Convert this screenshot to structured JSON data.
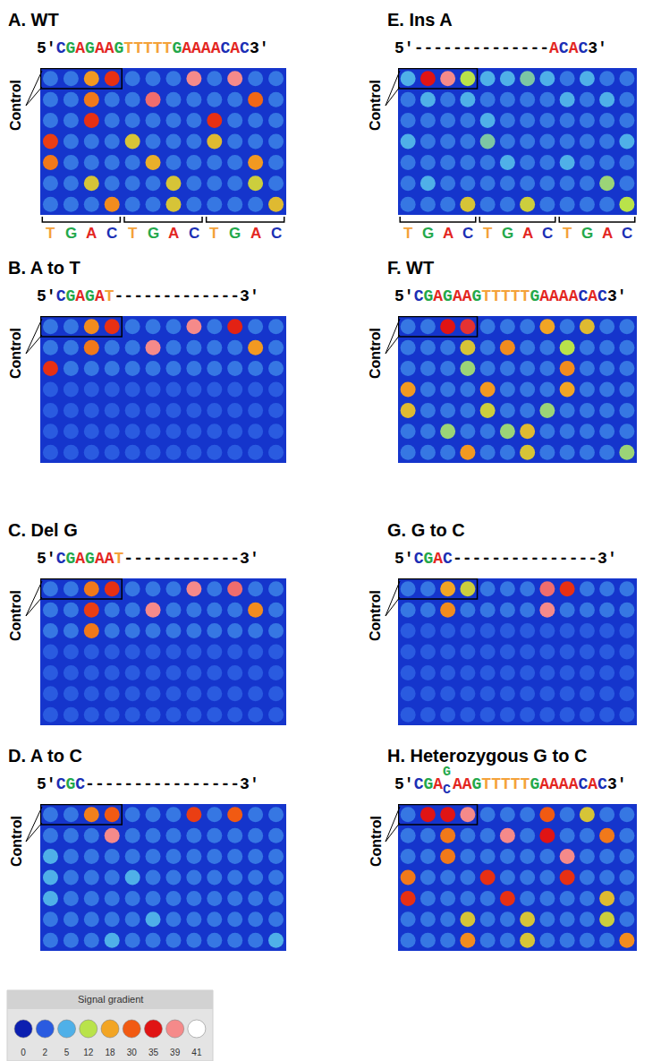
{
  "chart_data": [
    {
      "type": "heatmap",
      "title": "A. WT",
      "sequence": [
        "5'CGAGAAGTTTTTGAAAACAC3'"
      ],
      "row_label": "Control",
      "tick_labels": false,
      "column_labels": [
        "T",
        "G",
        "A",
        "C",
        "T",
        "G",
        "A",
        "C",
        "T",
        "G",
        "A",
        "C"
      ],
      "cells": [
        [
          3,
          3,
          20,
          33,
          3,
          3,
          3,
          39,
          3,
          39,
          3,
          3
        ],
        [
          3,
          3,
          25,
          3,
          3,
          38,
          3,
          3,
          3,
          3,
          28,
          3
        ],
        [
          3,
          3,
          33,
          3,
          3,
          3,
          3,
          3,
          33,
          3,
          3,
          3
        ],
        [
          32,
          3,
          3,
          3,
          15,
          3,
          3,
          3,
          16,
          3,
          3,
          3
        ],
        [
          25,
          3,
          3,
          3,
          3,
          17,
          3,
          3,
          3,
          3,
          20,
          3
        ],
        [
          3,
          3,
          15,
          3,
          3,
          3,
          15,
          3,
          3,
          3,
          14,
          3
        ],
        [
          3,
          3,
          3,
          22,
          3,
          3,
          15,
          3,
          3,
          3,
          3,
          16
        ]
      ]
    },
    {
      "type": "heatmap",
      "title": "B. A to T",
      "sequence": [
        "5'CGAGAT-------------3'"
      ],
      "row_label": "Control",
      "tick_labels": false,
      "cells": [
        [
          3,
          3,
          22,
          33,
          3,
          3,
          3,
          39,
          3,
          34,
          3,
          3
        ],
        [
          3,
          3,
          25,
          3,
          3,
          39,
          3,
          3,
          3,
          3,
          20,
          3
        ],
        [
          33,
          3,
          3,
          3,
          3,
          3,
          3,
          3,
          3,
          3,
          3,
          3
        ],
        [
          2,
          2,
          2,
          2,
          2,
          2,
          2,
          2,
          2,
          2,
          2,
          2
        ],
        [
          2,
          2,
          2,
          2,
          2,
          2,
          2,
          2,
          2,
          2,
          2,
          2
        ],
        [
          2,
          2,
          2,
          2,
          2,
          2,
          2,
          2,
          2,
          2,
          2,
          2
        ],
        [
          2,
          2,
          2,
          2,
          2,
          2,
          2,
          2,
          2,
          2,
          2,
          2
        ]
      ]
    },
    {
      "type": "heatmap",
      "title": "C. Del G",
      "sequence": [
        "5'CGAGAAT------------3'"
      ],
      "row_label": "Control",
      "tick_labels": false,
      "cells": [
        [
          3,
          3,
          25,
          33,
          3,
          3,
          3,
          39,
          3,
          38,
          3,
          3
        ],
        [
          3,
          3,
          32,
          3,
          3,
          39,
          3,
          3,
          3,
          3,
          22,
          3
        ],
        [
          3,
          3,
          25,
          3,
          3,
          3,
          3,
          3,
          3,
          3,
          3,
          3
        ],
        [
          2,
          2,
          2,
          2,
          2,
          2,
          2,
          2,
          2,
          2,
          2,
          2
        ],
        [
          2,
          2,
          2,
          2,
          2,
          2,
          2,
          2,
          2,
          2,
          2,
          2
        ],
        [
          2,
          2,
          2,
          2,
          2,
          2,
          2,
          2,
          2,
          2,
          2,
          2
        ],
        [
          2,
          2,
          2,
          2,
          2,
          2,
          2,
          2,
          2,
          2,
          2,
          2
        ]
      ]
    },
    {
      "type": "heatmap",
      "title": "D. A to C",
      "sequence": [
        "5'CGC----------------3'"
      ],
      "row_label": "Control",
      "tick_labels": false,
      "cells": [
        [
          3,
          3,
          24,
          30,
          3,
          3,
          3,
          32,
          3,
          30,
          3,
          3
        ],
        [
          3,
          3,
          3,
          39,
          3,
          3,
          3,
          3,
          3,
          3,
          3,
          3
        ],
        [
          5,
          3,
          3,
          3,
          3,
          3,
          3,
          3,
          3,
          3,
          3,
          3
        ],
        [
          5,
          3,
          3,
          3,
          5,
          3,
          3,
          3,
          3,
          3,
          3,
          3
        ],
        [
          5,
          3,
          3,
          3,
          3,
          3,
          3,
          3,
          3,
          3,
          3,
          3
        ],
        [
          3,
          3,
          3,
          3,
          3,
          5,
          3,
          3,
          3,
          3,
          3,
          3
        ],
        [
          3,
          3,
          3,
          5,
          3,
          3,
          3,
          3,
          3,
          3,
          3,
          5
        ]
      ]
    },
    {
      "type": "heatmap",
      "title": "E. Ins A",
      "sequence": [
        "5'--------------ACAC3'"
      ],
      "row_label": "Control",
      "tick_labels": false,
      "column_labels": [
        "T",
        "G",
        "A",
        "C",
        "T",
        "G",
        "A",
        "C",
        "T",
        "G",
        "A",
        "C"
      ],
      "cells": [
        [
          5,
          35,
          39,
          12,
          5,
          5,
          8,
          5,
          3,
          5,
          3,
          3
        ],
        [
          3,
          5,
          3,
          5,
          3,
          3,
          3,
          3,
          5,
          3,
          5,
          3
        ],
        [
          3,
          3,
          3,
          3,
          5,
          3,
          3,
          3,
          3,
          3,
          3,
          3
        ],
        [
          5,
          3,
          3,
          3,
          8,
          3,
          3,
          3,
          3,
          3,
          3,
          5
        ],
        [
          3,
          3,
          3,
          3,
          3,
          5,
          3,
          3,
          5,
          3,
          3,
          3
        ],
        [
          3,
          5,
          3,
          3,
          3,
          3,
          3,
          3,
          3,
          3,
          10,
          3
        ],
        [
          3,
          3,
          3,
          15,
          3,
          3,
          14,
          3,
          3,
          3,
          3,
          12
        ]
      ]
    },
    {
      "type": "heatmap",
      "title": "F. WT",
      "sequence": [
        "5'CGAGAAGTTTTTGAAAACAC3'"
      ],
      "row_label": "Control",
      "tick_labels": false,
      "cells": [
        [
          3,
          3,
          35,
          36,
          3,
          3,
          3,
          18,
          3,
          16,
          3,
          3
        ],
        [
          3,
          3,
          3,
          15,
          3,
          22,
          3,
          3,
          12,
          3,
          3,
          3
        ],
        [
          3,
          3,
          3,
          10,
          3,
          3,
          3,
          3,
          22,
          3,
          3,
          3
        ],
        [
          20,
          3,
          3,
          3,
          20,
          3,
          3,
          3,
          18,
          3,
          3,
          3
        ],
        [
          16,
          3,
          3,
          3,
          14,
          3,
          3,
          10,
          3,
          3,
          3,
          3
        ],
        [
          3,
          3,
          10,
          3,
          3,
          10,
          16,
          3,
          3,
          3,
          3,
          3
        ],
        [
          3,
          3,
          3,
          20,
          3,
          3,
          15,
          3,
          3,
          3,
          3,
          10
        ]
      ]
    },
    {
      "type": "heatmap",
      "title": "G. G to C",
      "sequence": [
        "5'CGAC---------------3'"
      ],
      "row_label": "Control",
      "tick_labels": false,
      "cells": [
        [
          3,
          3,
          18,
          14,
          3,
          3,
          3,
          38,
          33,
          3,
          3,
          3
        ],
        [
          3,
          3,
          22,
          3,
          3,
          3,
          3,
          39,
          3,
          3,
          3,
          3
        ],
        [
          2,
          2,
          2,
          2,
          2,
          2,
          2,
          2,
          2,
          2,
          2,
          2
        ],
        [
          2,
          2,
          2,
          2,
          2,
          2,
          2,
          2,
          2,
          2,
          2,
          2
        ],
        [
          2,
          2,
          2,
          2,
          2,
          2,
          2,
          2,
          2,
          2,
          2,
          2
        ],
        [
          2,
          2,
          2,
          2,
          2,
          2,
          2,
          2,
          2,
          2,
          2,
          2
        ],
        [
          2,
          2,
          2,
          2,
          2,
          2,
          2,
          2,
          2,
          2,
          2,
          2
        ]
      ]
    },
    {
      "type": "heatmap",
      "title": "H. Heterozygous G to C",
      "sequence": [
        "5'CGA",
        [
          "G",
          "C"
        ],
        "AAGTTTTTGAAAACAC3'"
      ],
      "row_label": "Control",
      "tick_labels": false,
      "cells": [
        [
          3,
          35,
          35,
          39,
          3,
          3,
          3,
          30,
          3,
          15,
          3,
          3
        ],
        [
          3,
          3,
          25,
          3,
          3,
          39,
          3,
          35,
          3,
          3,
          25,
          3
        ],
        [
          3,
          3,
          25,
          3,
          3,
          3,
          3,
          3,
          39,
          3,
          3,
          3
        ],
        [
          25,
          3,
          3,
          3,
          33,
          3,
          3,
          3,
          33,
          3,
          3,
          3
        ],
        [
          33,
          3,
          3,
          3,
          3,
          33,
          3,
          3,
          3,
          3,
          16,
          3
        ],
        [
          3,
          3,
          3,
          15,
          3,
          3,
          15,
          3,
          3,
          3,
          14,
          3
        ],
        [
          3,
          3,
          3,
          22,
          3,
          3,
          15,
          3,
          3,
          3,
          3,
          22
        ]
      ]
    }
  ],
  "signal_gradient": {
    "title": "Signal gradient",
    "range": [
      0,
      41
    ],
    "ticks": [
      0,
      2,
      5,
      12,
      18,
      30,
      35,
      39,
      41
    ]
  }
}
